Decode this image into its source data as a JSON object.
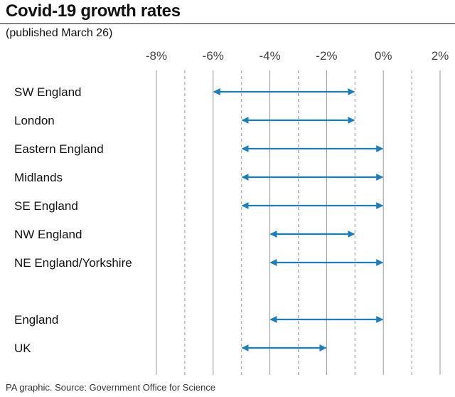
{
  "header": {
    "title": "Covid-19 growth rates",
    "subtitle": "(published March 26)"
  },
  "footer": {
    "source": "PA graphic. Source: Government Office for Science"
  },
  "colors": {
    "range": "#1a7fc1",
    "grid": "#999999"
  },
  "chart_data": {
    "type": "range",
    "title": "Covid-19 growth rates",
    "subtitle": "(published March 26)",
    "xlabel": "",
    "ylabel": "",
    "xlim": [
      -8,
      2
    ],
    "x_ticks": [
      -8,
      -7,
      -6,
      -5,
      -4,
      -3,
      -2,
      -1,
      0,
      1,
      2
    ],
    "x_tick_labels": [
      "-8%",
      "-6%",
      "-4%",
      "-2%",
      "0%",
      "2%"
    ],
    "x_tick_label_values": [
      -8,
      -6,
      -4,
      -2,
      0,
      2
    ],
    "grid": "vertical (dashed at odd values)",
    "legend": "none",
    "rows": [
      {
        "label": "SW England",
        "low": -6,
        "high": -1,
        "slot": 0
      },
      {
        "label": "London",
        "low": -5,
        "high": -1,
        "slot": 1
      },
      {
        "label": "Eastern England",
        "low": -5,
        "high": 0,
        "slot": 2
      },
      {
        "label": "Midlands",
        "low": -5,
        "high": 0,
        "slot": 3
      },
      {
        "label": "SE England",
        "low": -5,
        "high": 0,
        "slot": 4
      },
      {
        "label": "NW England",
        "low": -4,
        "high": -1,
        "slot": 5
      },
      {
        "label": "NE England/Yorkshire",
        "low": -4,
        "high": 0,
        "slot": 6
      },
      {
        "label": "England",
        "low": -4,
        "high": 0,
        "slot": 8
      },
      {
        "label": "UK",
        "low": -5,
        "high": -2,
        "slot": 9
      }
    ]
  }
}
